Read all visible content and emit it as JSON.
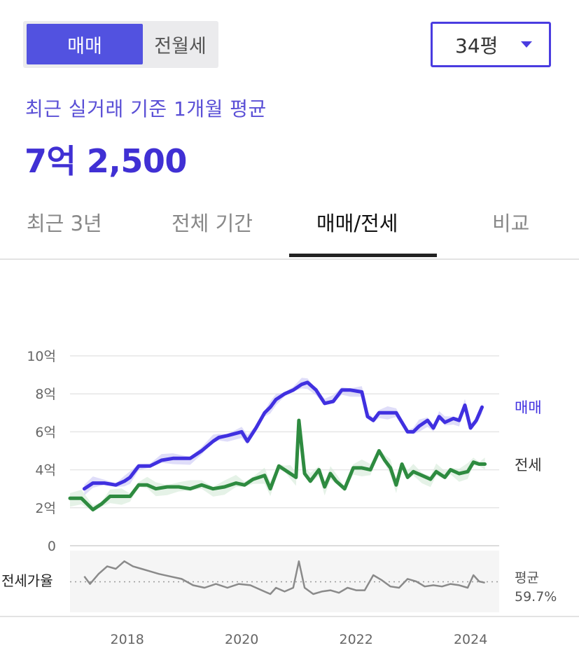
{
  "segment": {
    "active_label": "매매",
    "inactive_label": "전월세"
  },
  "size_select": {
    "value": "34평"
  },
  "summary": {
    "subtitle": "최근 실거래 기준 1개월 평균",
    "price": "7억 2,500"
  },
  "tabs": [
    {
      "label": "최근 3년"
    },
    {
      "label": "전체 기간"
    },
    {
      "label": "매매/전세",
      "active": true
    },
    {
      "label": "비교"
    }
  ],
  "colors": {
    "sale": "#4030e0",
    "jeonse": "#2e8b40",
    "ratio": "#8a8a8a",
    "accent": "#5252e0"
  },
  "chart_data": [
    {
      "type": "line",
      "ylim": [
        0,
        10
      ],
      "yticks": [
        0,
        2,
        4,
        6,
        8,
        10
      ],
      "ytick_labels": [
        "0",
        "2억",
        "4억",
        "6억",
        "8억",
        "10억"
      ],
      "xlim": [
        2017.0,
        2024.5
      ],
      "xticks": [
        2018,
        2020,
        2022,
        2024
      ],
      "xtick_labels": [
        "2018",
        "2020",
        "2022",
        "2024"
      ],
      "grid": true,
      "series": [
        {
          "name": "매매",
          "color": "#4030e0",
          "x": [
            2017.25,
            2017.4,
            2017.6,
            2017.8,
            2017.95,
            2018.05,
            2018.2,
            2018.4,
            2018.6,
            2018.8,
            2019.1,
            2019.3,
            2019.5,
            2019.6,
            2019.75,
            2020.0,
            2020.1,
            2020.25,
            2020.4,
            2020.5,
            2020.6,
            2020.75,
            2020.9,
            2021.05,
            2021.15,
            2021.3,
            2021.45,
            2021.6,
            2021.75,
            2021.9,
            2022.1,
            2022.2,
            2022.3,
            2022.4,
            2022.55,
            2022.7,
            2022.9,
            2023.0,
            2023.1,
            2023.25,
            2023.35,
            2023.45,
            2023.55,
            2023.7,
            2023.8,
            2023.9,
            2024.0,
            2024.1,
            2024.2
          ],
          "values": [
            3.0,
            3.3,
            3.3,
            3.2,
            3.4,
            3.6,
            4.2,
            4.2,
            4.5,
            4.6,
            4.6,
            5.0,
            5.5,
            5.7,
            5.8,
            6.0,
            5.5,
            6.2,
            7.0,
            7.3,
            7.7,
            8.0,
            8.2,
            8.5,
            8.6,
            8.2,
            7.5,
            7.6,
            8.2,
            8.2,
            8.1,
            6.8,
            6.6,
            7.0,
            7.0,
            7.0,
            6.0,
            6.0,
            6.3,
            6.6,
            6.2,
            6.8,
            6.5,
            6.7,
            6.6,
            7.4,
            6.2,
            6.6,
            7.3
          ]
        },
        {
          "name": "전세",
          "color": "#2e8b40",
          "x": [
            2017.0,
            2017.2,
            2017.4,
            2017.55,
            2017.7,
            2017.9,
            2018.05,
            2018.2,
            2018.35,
            2018.5,
            2018.7,
            2018.9,
            2019.1,
            2019.3,
            2019.5,
            2019.7,
            2019.9,
            2020.05,
            2020.2,
            2020.4,
            2020.5,
            2020.65,
            2020.75,
            2020.85,
            2020.95,
            2021.0,
            2021.1,
            2021.2,
            2021.35,
            2021.45,
            2021.55,
            2021.65,
            2021.8,
            2021.95,
            2022.1,
            2022.25,
            2022.4,
            2022.5,
            2022.6,
            2022.7,
            2022.8,
            2022.9,
            2023.0,
            2023.15,
            2023.3,
            2023.4,
            2023.55,
            2023.65,
            2023.8,
            2023.95,
            2024.05,
            2024.15,
            2024.25
          ],
          "values": [
            2.5,
            2.5,
            1.9,
            2.2,
            2.6,
            2.6,
            2.6,
            3.2,
            3.2,
            3.0,
            3.1,
            3.1,
            3.0,
            3.2,
            3.0,
            3.1,
            3.3,
            3.2,
            3.5,
            3.7,
            3.0,
            4.2,
            4.0,
            3.8,
            3.6,
            6.6,
            3.8,
            3.4,
            4.0,
            3.1,
            3.8,
            3.4,
            3.0,
            4.1,
            4.1,
            4.0,
            5.0,
            4.5,
            4.1,
            3.2,
            4.3,
            3.6,
            3.9,
            3.7,
            3.5,
            3.9,
            3.6,
            4.0,
            3.8,
            3.9,
            4.4,
            4.3,
            4.3
          ]
        }
      ],
      "series_labels": [
        "매매",
        "전세"
      ]
    },
    {
      "type": "line",
      "ylabel": "전세가율",
      "average_label": "평균",
      "average_value": "59.7%",
      "x": [
        2017.25,
        2017.35,
        2017.5,
        2017.65,
        2017.8,
        2017.95,
        2018.1,
        2018.25,
        2018.4,
        2018.55,
        2018.75,
        2018.95,
        2019.15,
        2019.35,
        2019.55,
        2019.75,
        2019.95,
        2020.15,
        2020.35,
        2020.5,
        2020.6,
        2020.75,
        2020.9,
        2021.0,
        2021.1,
        2021.25,
        2021.4,
        2021.55,
        2021.7,
        2021.85,
        2022.0,
        2022.15,
        2022.3,
        2022.45,
        2022.6,
        2022.75,
        2022.9,
        2023.05,
        2023.2,
        2023.35,
        2023.5,
        2023.65,
        2023.8,
        2023.95,
        2024.05,
        2024.15,
        2024.25
      ],
      "values": [
        64,
        58,
        66,
        72,
        70,
        76,
        72,
        70,
        68,
        66,
        64,
        62,
        57,
        55,
        58,
        55,
        58,
        57,
        53,
        50,
        55,
        52,
        55,
        76,
        55,
        50,
        52,
        53,
        51,
        55,
        53,
        53,
        65,
        61,
        56,
        55,
        62,
        60,
        56,
        57,
        56,
        58,
        57,
        55,
        65,
        60,
        59
      ]
    }
  ]
}
